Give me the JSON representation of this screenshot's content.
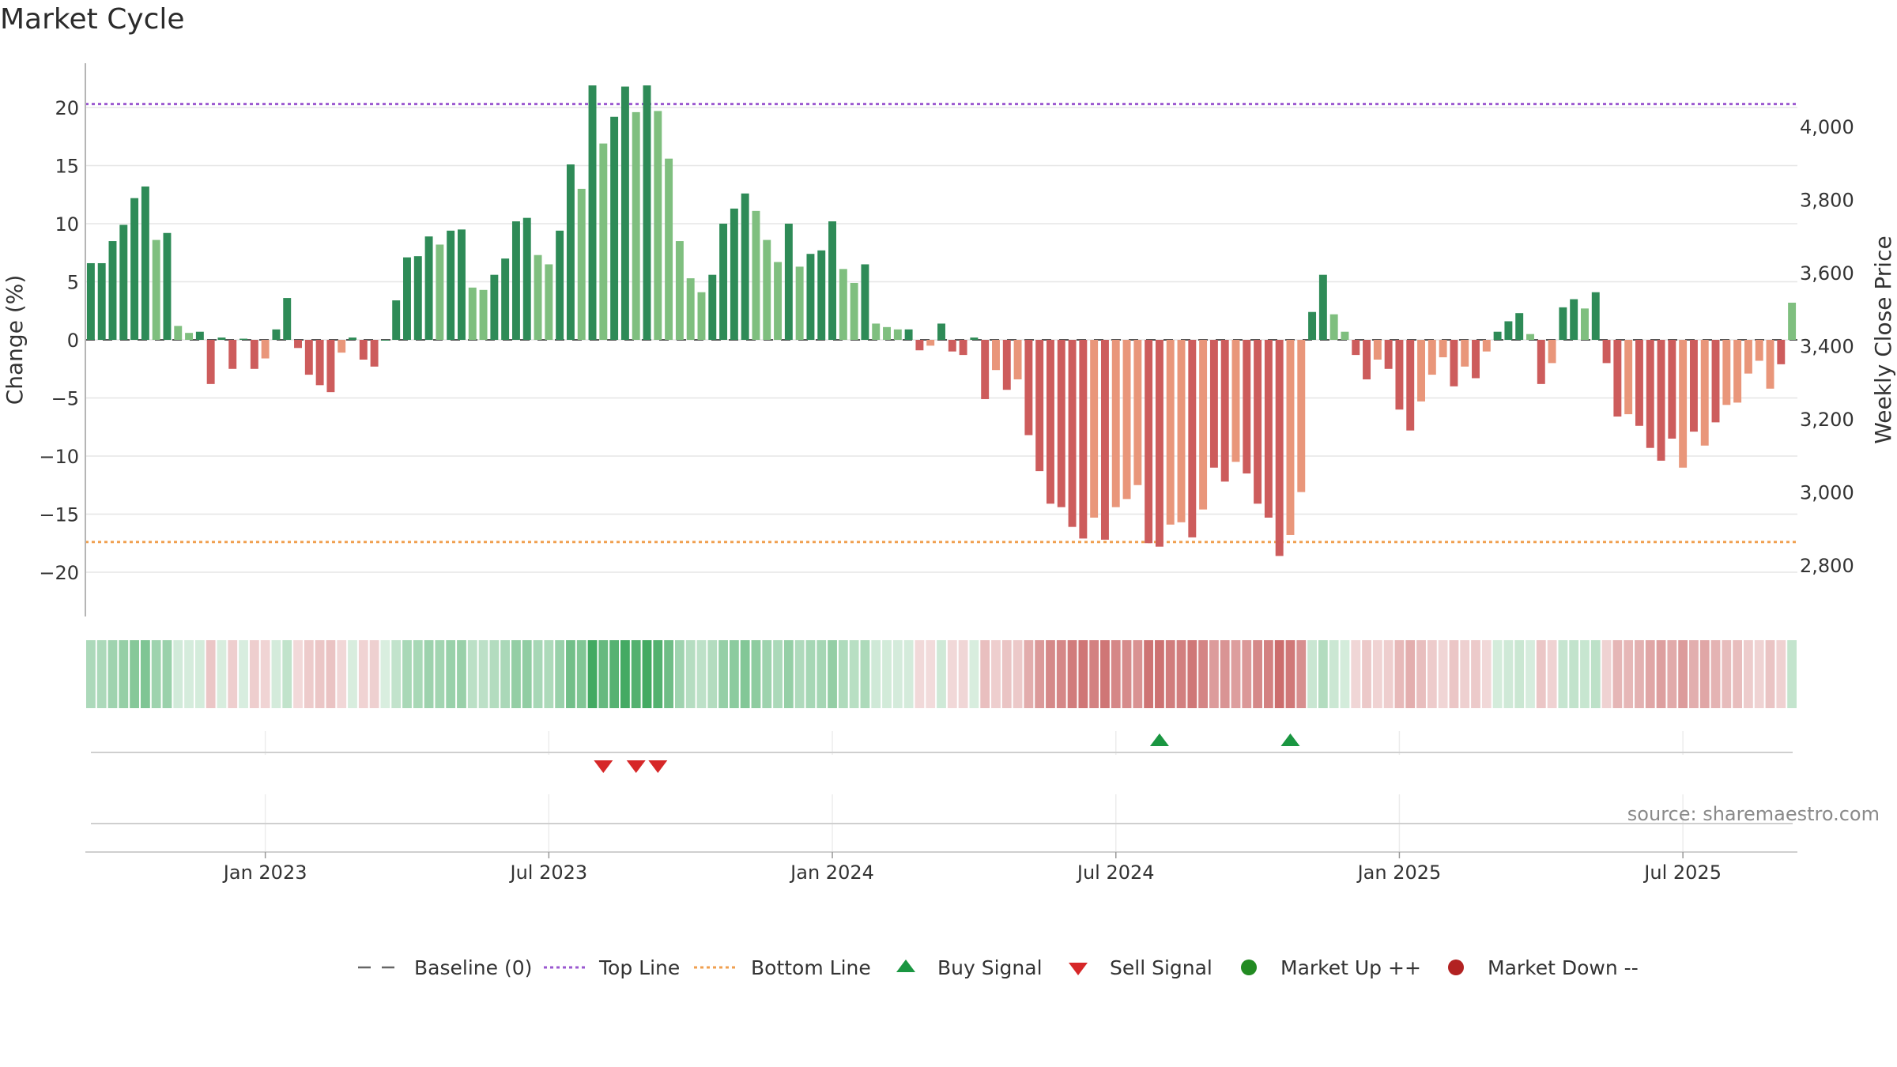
{
  "title": "Market Cycle",
  "source": "source: sharemaestro.com",
  "colors": {
    "up_strong": "#2e8b57",
    "up_weak": "#7fbf7f",
    "down_strong": "#cd5c5c",
    "down_weak": "#e9967a",
    "top_line": "#9b59d0",
    "bottom_line": "#f0a050",
    "buy": "#1a9641",
    "sell": "#d62728",
    "market_up": "#228b22",
    "market_down": "#b22222"
  },
  "legend": [
    {
      "key": "baseline",
      "label": "Baseline (0)"
    },
    {
      "key": "top",
      "label": "Top Line"
    },
    {
      "key": "bottom",
      "label": "Bottom Line"
    },
    {
      "key": "buy",
      "label": "Buy Signal"
    },
    {
      "key": "sell",
      "label": "Sell Signal"
    },
    {
      "key": "up",
      "label": "Market Up ++"
    },
    {
      "key": "down",
      "label": "Market Down --"
    }
  ],
  "chart_data": {
    "type": "bar",
    "ylabel": "Change (%)",
    "y2label": "Weekly Close Price",
    "ylim": [
      -23.5,
      24
    ],
    "yticks": [
      20,
      15,
      10,
      5,
      0,
      -5,
      -10,
      -15,
      -20
    ],
    "ytick_labels": [
      "20",
      "15",
      "10",
      "5",
      "0",
      "−5",
      "−10",
      "−15",
      "−20"
    ],
    "y2ticks": [
      "4,000",
      "3,800",
      "3,600",
      "3,400",
      "3,200",
      "3,000",
      "2,800"
    ],
    "top_line": 20.3,
    "bottom_line": -17.4,
    "xticks": [
      {
        "label": "Jan 2023",
        "index": 16
      },
      {
        "label": "Jul 2023",
        "index": 42
      },
      {
        "label": "Jan 2024",
        "index": 68
      },
      {
        "label": "Jul 2024",
        "index": 94
      },
      {
        "label": "Jan 2025",
        "index": 120
      },
      {
        "label": "Jul 2025",
        "index": 146
      }
    ],
    "values": [
      6.6,
      6.6,
      8.5,
      9.9,
      12.2,
      13.2,
      8.6,
      9.2,
      1.2,
      0.6,
      0.7,
      -3.8,
      0.2,
      -2.5,
      0.1,
      -2.5,
      -1.6,
      0.9,
      3.6,
      -0.7,
      -3.0,
      -3.9,
      -4.5,
      -1.1,
      0.2,
      -1.7,
      -2.3,
      0.0,
      3.4,
      7.1,
      7.2,
      8.9,
      8.2,
      9.4,
      9.5,
      4.5,
      4.3,
      5.6,
      7.0,
      10.2,
      10.5,
      7.3,
      6.5,
      9.4,
      15.1,
      13.0,
      21.9,
      16.9,
      19.2,
      21.8,
      19.6,
      21.9,
      19.7,
      15.6,
      8.5,
      5.3,
      4.1,
      5.6,
      10.0,
      11.3,
      12.6,
      11.1,
      8.6,
      6.7,
      10.0,
      6.3,
      7.4,
      7.7,
      10.2,
      6.1,
      4.9,
      6.5,
      1.4,
      1.1,
      0.9,
      0.9,
      -0.9,
      -0.5,
      1.4,
      -1.0,
      -1.3,
      0.2,
      -5.1,
      -2.6,
      -4.3,
      -3.4,
      -8.2,
      -11.3,
      -14.1,
      -14.4,
      -16.1,
      -17.1,
      -15.3,
      -17.2,
      -14.4,
      -13.7,
      -12.5,
      -17.5,
      -17.8,
      -15.9,
      -15.7,
      -17.0,
      -14.6,
      -11.0,
      -12.2,
      -10.5,
      -11.5,
      -14.1,
      -15.3,
      -18.6,
      -16.8,
      -13.1,
      2.4,
      5.6,
      2.2,
      0.7,
      -1.3,
      -3.4,
      -1.7,
      -2.5,
      -6.0,
      -7.8,
      -5.3,
      -3.0,
      -1.5,
      -4.0,
      -2.3,
      -3.3,
      -1.0,
      0.7,
      1.6,
      2.3,
      0.5,
      -3.8,
      -2.0,
      2.8,
      3.5,
      2.7,
      4.1,
      -2.0,
      -6.6,
      -6.4,
      -7.4,
      -9.3,
      -10.4,
      -8.5,
      -11.0,
      -7.9,
      -9.1,
      -7.1,
      -5.6,
      -5.4,
      -2.9,
      -1.8,
      -4.2,
      -2.1,
      3.2
    ],
    "shades": [
      "s",
      "s",
      "s",
      "s",
      "s",
      "s",
      "w",
      "s",
      "w",
      "w",
      "s",
      "s",
      "s",
      "s",
      "s",
      "s",
      "w",
      "s",
      "s",
      "s",
      "s",
      "s",
      "s",
      "w",
      "s",
      "s",
      "s",
      "s",
      "s",
      "s",
      "s",
      "s",
      "w",
      "s",
      "s",
      "w",
      "w",
      "s",
      "s",
      "s",
      "s",
      "w",
      "w",
      "s",
      "s",
      "w",
      "s",
      "w",
      "s",
      "s",
      "w",
      "s",
      "w",
      "w",
      "w",
      "w",
      "w",
      "s",
      "s",
      "s",
      "s",
      "w",
      "w",
      "w",
      "s",
      "w",
      "s",
      "s",
      "s",
      "w",
      "w",
      "s",
      "w",
      "w",
      "w",
      "s",
      "s",
      "w",
      "s",
      "s",
      "s",
      "s",
      "s",
      "w",
      "s",
      "w",
      "s",
      "s",
      "s",
      "s",
      "s",
      "s",
      "w",
      "s",
      "w",
      "w",
      "w",
      "s",
      "s",
      "w",
      "w",
      "s",
      "w",
      "s",
      "s",
      "w",
      "s",
      "s",
      "s",
      "s",
      "w",
      "w",
      "s",
      "s",
      "w",
      "w",
      "s",
      "s",
      "w",
      "s",
      "s",
      "s",
      "w",
      "w",
      "w",
      "s",
      "w",
      "s",
      "w",
      "s",
      "s",
      "s",
      "w",
      "s",
      "w",
      "s",
      "s",
      "w",
      "s",
      "s",
      "s",
      "w",
      "s",
      "s",
      "s",
      "s",
      "w",
      "s",
      "w",
      "s",
      "w",
      "w",
      "w",
      "w",
      "w",
      "s",
      "w",
      "s"
    ],
    "buy_signals": [
      98,
      110
    ],
    "sell_signals": [
      47,
      50,
      52
    ]
  }
}
